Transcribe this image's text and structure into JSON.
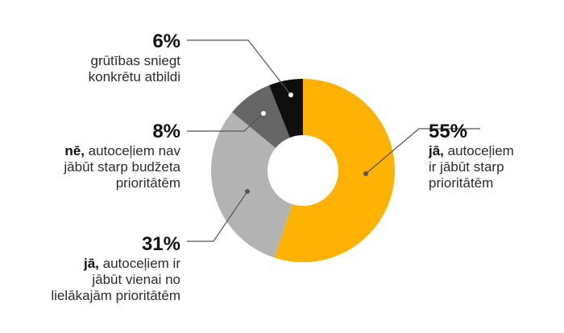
{
  "chart_data": {
    "type": "donut",
    "values": [
      55,
      31,
      8,
      6
    ],
    "colors": [
      "#FDB202",
      "#B3B3B3",
      "#666666",
      "#0F0F0F"
    ],
    "slices": [
      {
        "percent_label": "55%",
        "bold_prefix": "jā,",
        "lines": [
          " autoceļiem",
          "ir jābūt starp",
          "prioritātēm"
        ]
      },
      {
        "percent_label": "31%",
        "bold_prefix": "jā,",
        "lines": [
          " autoceļiem ir",
          "jābūt vienai no",
          "lielākajām prioritātēm"
        ]
      },
      {
        "percent_label": "8%",
        "bold_prefix": "nē,",
        "lines": [
          " autoceļiem nav",
          "jābūt starp budžeta",
          "prioritātēm"
        ]
      },
      {
        "percent_label": "6%",
        "bold_prefix": "",
        "lines": [
          "grūtības sniegt",
          "konkrētu atbildi"
        ]
      }
    ]
  }
}
